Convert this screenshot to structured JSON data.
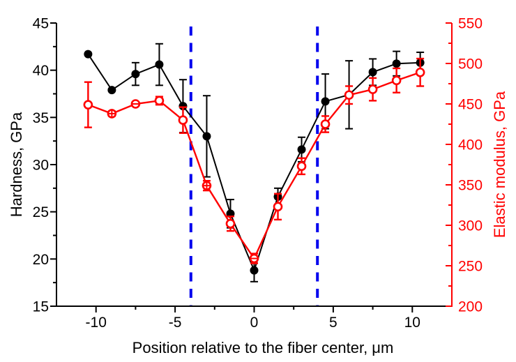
{
  "chart_data": {
    "type": "line",
    "title": "",
    "xlabel": "Position relative to the fiber center, μm",
    "ylabel_left": "Hardness, GPa",
    "ylabel_right": "Elastic modulus, GPa",
    "xlim": [
      -12.5,
      12.5
    ],
    "x_ticks": [
      -10,
      -5,
      0,
      5,
      10
    ],
    "x_minor_ticks": [
      -7.5,
      -2.5,
      2.5,
      7.5
    ],
    "ylim_left": [
      15,
      45
    ],
    "y_ticks_left": [
      15,
      20,
      25,
      30,
      35,
      40,
      45
    ],
    "y_minor_ticks_left": [
      17.5,
      22.5,
      27.5,
      32.5,
      37.5,
      42.5
    ],
    "ylim_right": [
      200,
      550
    ],
    "y_ticks_right": [
      200,
      250,
      300,
      350,
      400,
      450,
      500,
      550
    ],
    "y_minor_ticks_right": [
      225,
      275,
      325,
      375,
      425,
      475,
      525
    ],
    "x": [
      -10.5,
      -9,
      -7.5,
      -6,
      -4.5,
      -3,
      -1.5,
      0,
      1.5,
      3,
      4.5,
      6,
      7.5,
      9,
      10.5
    ],
    "series": [
      {
        "name": "hardness",
        "axis": "left",
        "color": "#000000",
        "marker": "filled-circle",
        "values": [
          41.7,
          37.9,
          39.6,
          40.6,
          36.2,
          33.0,
          24.8,
          18.8,
          26.6,
          31.6,
          36.7,
          37.4,
          39.8,
          40.7,
          40.8
        ],
        "errors": [
          0,
          0,
          1.2,
          2.2,
          2.8,
          4.3,
          1.5,
          1.2,
          0.9,
          1.3,
          2.9,
          3.6,
          1.4,
          1.3,
          1.1
        ]
      },
      {
        "name": "elastic-modulus",
        "axis": "right",
        "color": "#ff0000",
        "marker": "open-circle",
        "values": [
          449,
          438,
          450,
          454,
          430,
          349,
          302,
          259,
          323,
          373,
          425,
          461,
          468,
          479,
          489
        ],
        "errors": [
          28,
          3,
          2,
          5,
          16,
          6,
          9,
          6,
          16,
          10,
          10,
          11,
          14,
          15,
          17
        ],
        "marker_overlays": [
          null,
          "plus",
          "minus",
          null,
          null,
          "plus",
          null,
          "minus",
          null,
          null,
          null,
          null,
          null,
          null,
          null
        ]
      }
    ],
    "reference_lines": {
      "x_values": [
        -4,
        4
      ],
      "style": "dashed",
      "color": "#0000ee"
    },
    "legend": "none",
    "grid": "off"
  },
  "colors": {
    "hardness_series": "#000000",
    "modulus_series": "#ff0000",
    "boundary_line": "#0000ee",
    "background": "#ffffff"
  }
}
